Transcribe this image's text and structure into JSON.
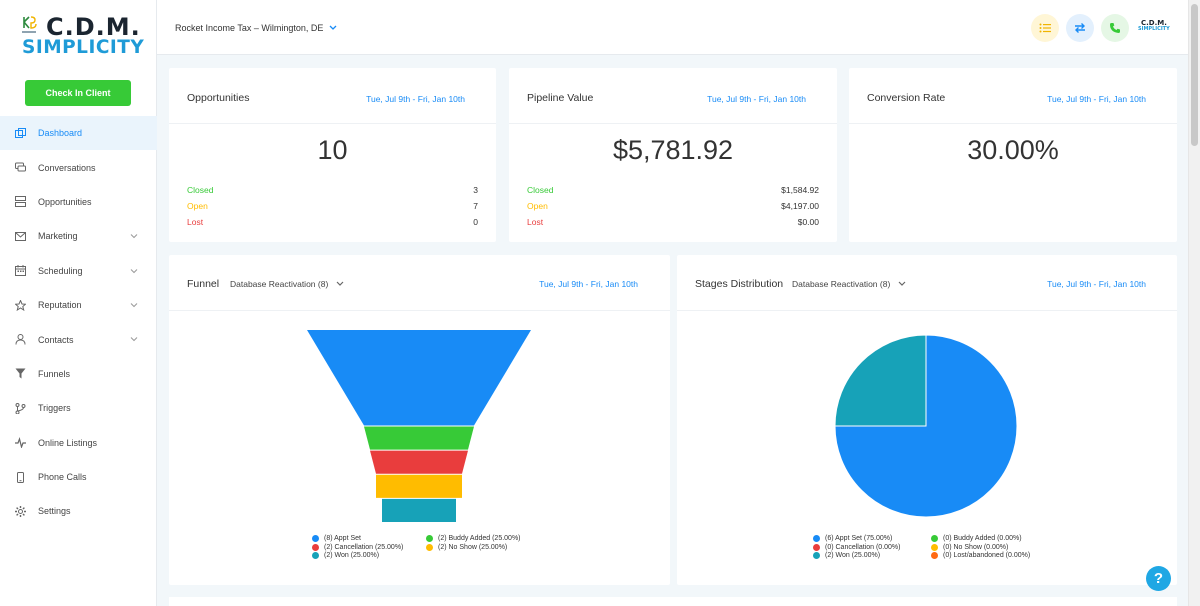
{
  "brand": {
    "logo_top": "C.D.M.",
    "logo_bottom": "SIMPLICITY",
    "mini_top": "C.D.M.",
    "mini_bottom": "SIMPLICITY"
  },
  "sidebar": {
    "checkin_label": "Check In Client",
    "items": [
      {
        "label": "Dashboard",
        "icon": "dashboard-icon",
        "active": true
      },
      {
        "label": "Conversations",
        "icon": "chat-icon"
      },
      {
        "label": "Opportunities",
        "icon": "opportunities-icon"
      },
      {
        "label": "Marketing",
        "icon": "mail-icon",
        "has_children": true
      },
      {
        "label": "Scheduling",
        "icon": "calendar-icon",
        "has_children": true
      },
      {
        "label": "Reputation",
        "icon": "star-icon",
        "has_children": true
      },
      {
        "label": "Contacts",
        "icon": "person-icon",
        "has_children": true
      },
      {
        "label": "Funnels",
        "icon": "filter-icon"
      },
      {
        "label": "Triggers",
        "icon": "branch-icon"
      },
      {
        "label": "Online Listings",
        "icon": "pulse-icon"
      },
      {
        "label": "Phone Calls",
        "icon": "phone-icon"
      },
      {
        "label": "Settings",
        "icon": "gear-icon"
      }
    ]
  },
  "topbar": {
    "location": "Rocket Income Tax – Wilmington, DE"
  },
  "colors": {
    "accent": "#188bf6",
    "green": "#37ca37",
    "orange": "#ffbc00",
    "red": "#e93d3d",
    "teal": "#17a2b8"
  },
  "opportunities": {
    "title": "Opportunities",
    "date": "Tue, Jul 9th - Fri, Jan 10th",
    "value": "10",
    "closed_label": "Closed",
    "closed": "3",
    "open_label": "Open",
    "open": "7",
    "lost_label": "Lost",
    "lost": "0"
  },
  "pipeline": {
    "title": "Pipeline Value",
    "date": "Tue, Jul 9th - Fri, Jan 10th",
    "value": "$5,781.92",
    "closed_label": "Closed",
    "closed": "$1,584.92",
    "open_label": "Open",
    "open": "$4,197.00",
    "lost_label": "Lost",
    "lost": "$0.00"
  },
  "conversion": {
    "title": "Conversion Rate",
    "date": "Tue, Jul 9th - Fri, Jan 10th",
    "value": "30.00%"
  },
  "funnel": {
    "title": "Funnel",
    "pipeline": "Database Reactivation (8)",
    "date": "Tue, Jul 9th - Fri, Jan 10th",
    "legend": [
      {
        "label": "(8) Appt Set",
        "color": "#188bf6"
      },
      {
        "label": "(2) Buddy Added (25.00%)",
        "color": "#37ca37"
      },
      {
        "label": "(2) Cancellation (25.00%)",
        "color": "#e93d3d"
      },
      {
        "label": "(2) No Show (25.00%)",
        "color": "#ffbc00"
      },
      {
        "label": "(2) Won (25.00%)",
        "color": "#17a2b8"
      }
    ]
  },
  "stages": {
    "title": "Stages Distribution",
    "pipeline": "Database Reactivation (8)",
    "date": "Tue, Jul 9th - Fri, Jan 10th",
    "legend": [
      {
        "label": "(6) Appt Set (75.00%)",
        "color": "#188bf6"
      },
      {
        "label": "(0) Buddy Added (0.00%)",
        "color": "#37ca37"
      },
      {
        "label": "(0) Cancellation (0.00%)",
        "color": "#e93d3d"
      },
      {
        "label": "(0) No Show (0.00%)",
        "color": "#ffbc00"
      },
      {
        "label": "(2) Won (25.00%)",
        "color": "#17a2b8"
      },
      {
        "label": "(0) Lost/abandoned (0.00%)",
        "color": "#ff6a13"
      }
    ]
  },
  "chart_data": [
    {
      "type": "funnel",
      "categories": [
        "Appt Set",
        "Buddy Added",
        "Cancellation",
        "No Show",
        "Won"
      ],
      "values": [
        8,
        2,
        2,
        2,
        2
      ],
      "colors": [
        "#188bf6",
        "#37ca37",
        "#e93d3d",
        "#ffbc00",
        "#17a2b8"
      ]
    },
    {
      "type": "pie",
      "categories": [
        "Appt Set",
        "Won"
      ],
      "values": [
        6,
        2
      ],
      "colors": [
        "#188bf6",
        "#17a2b8"
      ]
    }
  ]
}
